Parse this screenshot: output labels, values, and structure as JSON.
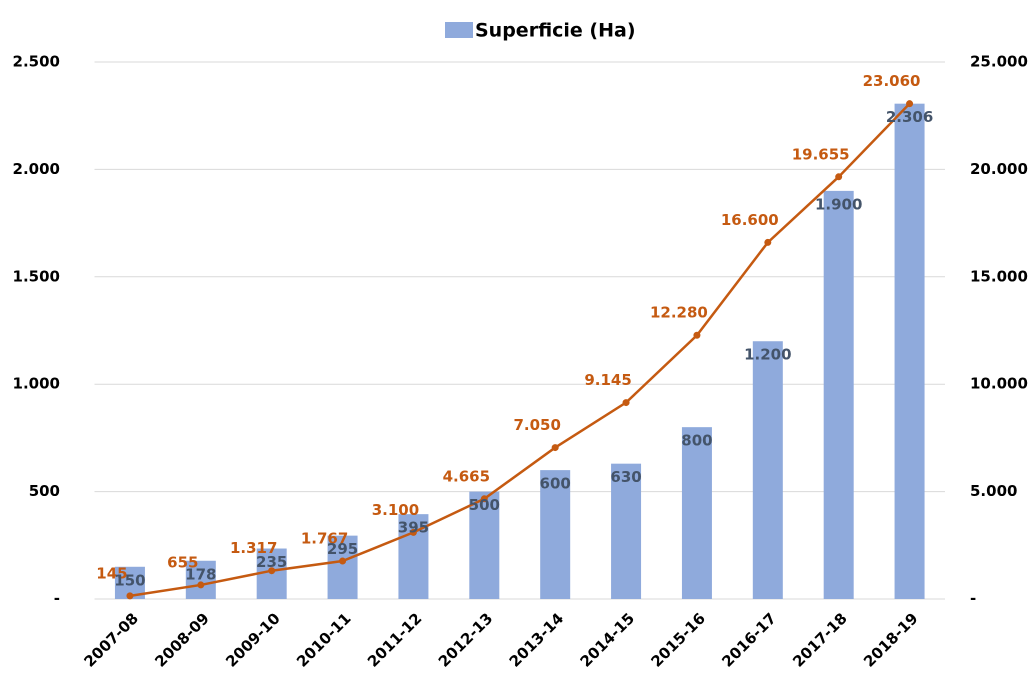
{
  "chart_data": {
    "type": "combo",
    "categories": [
      "2007-08",
      "2008-09",
      "2009-10",
      "2010-11",
      "2011-12",
      "2012-13",
      "2013-14",
      "2014-15",
      "2015-16",
      "2016-17",
      "2017-18",
      "2018-19"
    ],
    "series": [
      {
        "name": "Superficie (Ha)",
        "type": "bar",
        "color": "#8faadc",
        "label_color": "#44546a",
        "values": [
          150,
          178,
          235,
          295,
          395,
          500,
          600,
          630,
          800,
          1200,
          1900,
          2306
        ],
        "value_labels": [
          "150",
          "178",
          "235",
          "295",
          "395",
          "500",
          "600",
          "630",
          "800",
          "1.200",
          "1.900",
          "2.306"
        ]
      },
      {
        "type": "line",
        "axis": "y2",
        "color": "#c55a11",
        "label_color": "#c55a11",
        "values": [
          145,
          655,
          1317,
          1767,
          3100,
          4665,
          7050,
          9145,
          12280,
          16600,
          19655,
          23060
        ],
        "value_labels": [
          "145",
          "655",
          "1.317",
          "1.767",
          "3.100",
          "4.665",
          "7.050",
          "9.145",
          "12.280",
          "16.600",
          "19.655",
          "23.060"
        ]
      }
    ],
    "ylim": [
      0,
      2500
    ],
    "yticks": [
      {
        "value": 0,
        "label": "-"
      },
      500,
      {
        "value": 1000,
        "label": "1.000"
      },
      {
        "value": 1500,
        "label": "1.500"
      },
      {
        "value": 2000,
        "label": "2.000"
      },
      {
        "value": 2500,
        "label": "2.500"
      }
    ],
    "y2lim": [
      0,
      25000
    ],
    "y2ticks": [
      {
        "value": 0,
        "label": "-"
      },
      {
        "value": 5000,
        "label": "5.000"
      },
      {
        "value": 10000,
        "label": "10.000"
      },
      {
        "value": 15000,
        "label": "15.000"
      },
      {
        "value": 20000,
        "label": "20.000"
      },
      {
        "value": 25000,
        "label": "25.000"
      }
    ],
    "grid": true,
    "legend": "top"
  }
}
